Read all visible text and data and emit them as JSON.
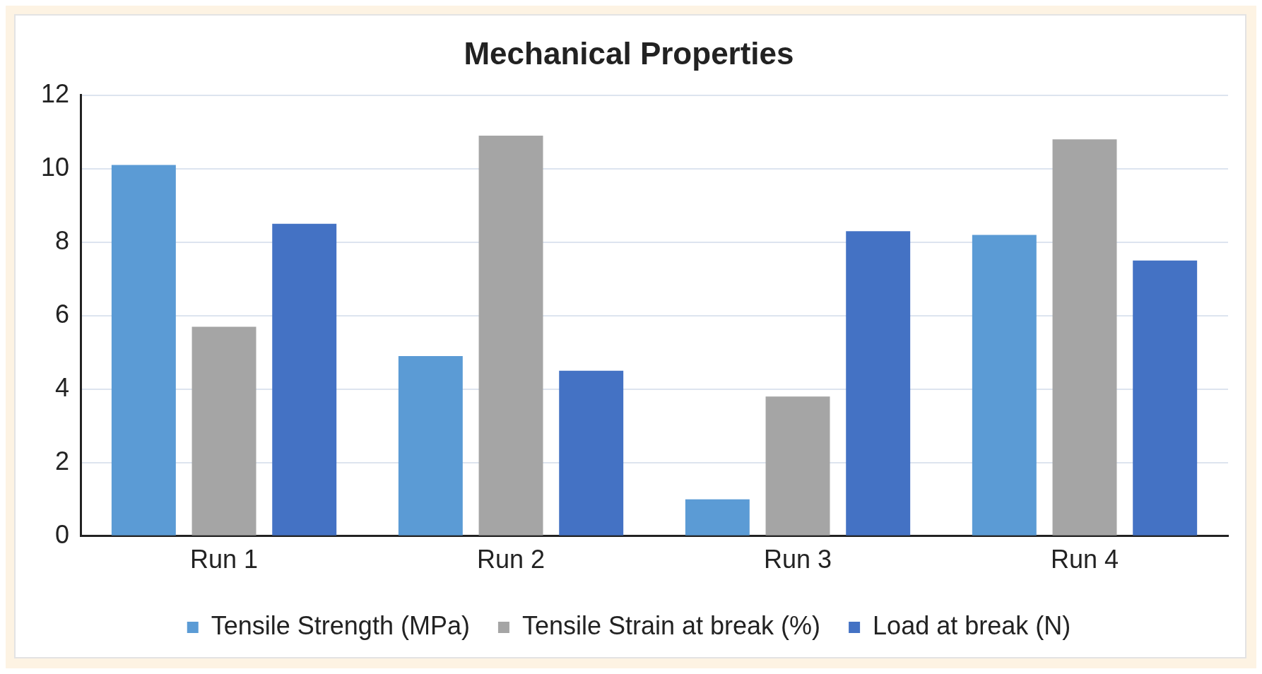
{
  "chart_data": {
    "type": "bar",
    "title": "Mechanical Properties",
    "categories": [
      "Run 1",
      "Run 2",
      "Run 3",
      "Run 4"
    ],
    "series": [
      {
        "name": "Tensile Strength (MPa)",
        "color": "#5b9bd5",
        "values": [
          10.1,
          4.9,
          1.0,
          8.2
        ]
      },
      {
        "name": "Tensile Strain at break (%)",
        "color": "#a5a5a5",
        "values": [
          5.7,
          10.9,
          3.8,
          10.8
        ]
      },
      {
        "name": "Load at break (N)",
        "color": "#4472c4",
        "values": [
          8.5,
          4.5,
          8.3,
          7.5
        ]
      }
    ],
    "ylim": [
      0,
      12
    ],
    "yticks": [
      0,
      2,
      4,
      6,
      8,
      10,
      12
    ],
    "grid": "y",
    "legend": "bottom"
  }
}
